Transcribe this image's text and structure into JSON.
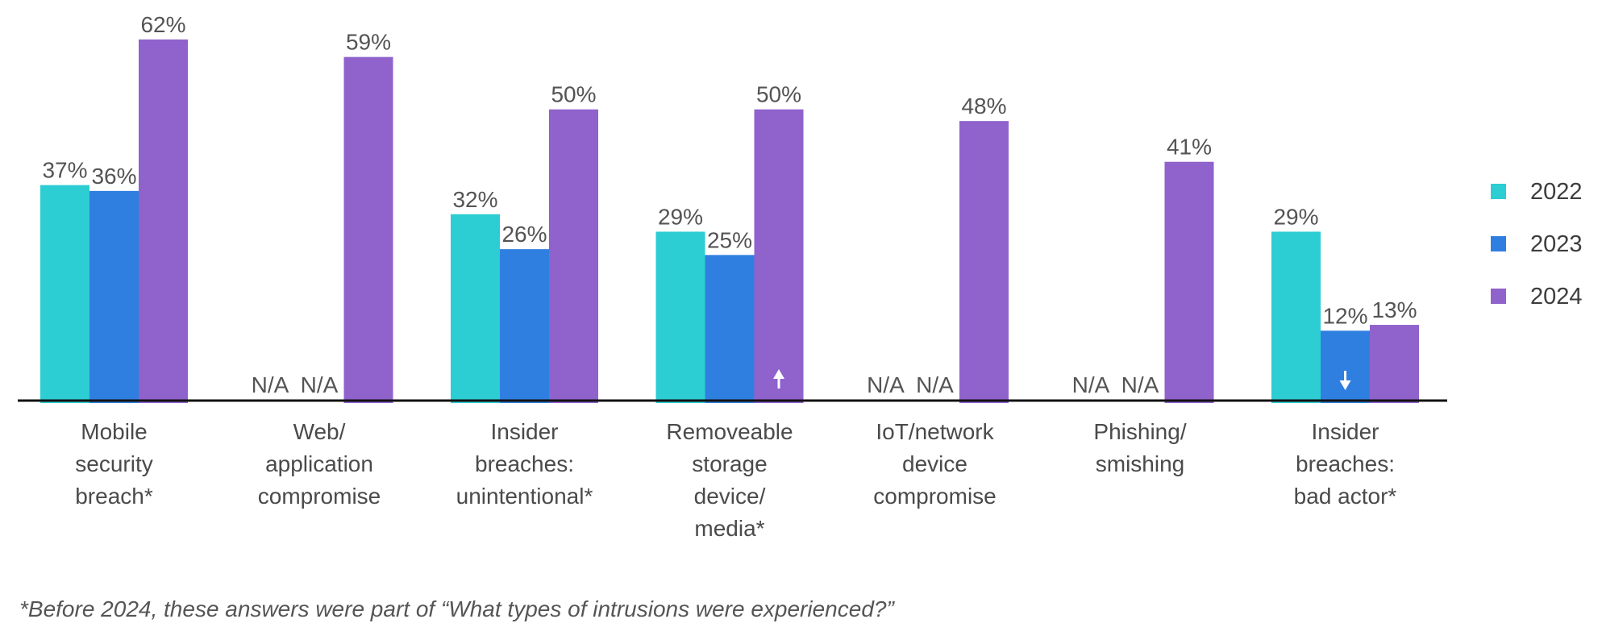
{
  "chart_data": {
    "type": "bar",
    "categories": [
      [
        "Mobile",
        "security",
        "breach*"
      ],
      [
        "Web/",
        "application",
        "compromise"
      ],
      [
        "Insider",
        "breaches:",
        "unintentional*"
      ],
      [
        "Removeable",
        "storage",
        "device/",
        "media*"
      ],
      [
        "IoT/network",
        "device",
        "compromise"
      ],
      [
        "Phishing/",
        "smishing"
      ],
      [
        "Insider",
        "breaches:",
        "bad actor*"
      ]
    ],
    "series": [
      {
        "name": "2022",
        "color": "#2ccdd3",
        "values": [
          37,
          null,
          32,
          29,
          null,
          null,
          29
        ],
        "labels": [
          "37%",
          "N/A",
          "32%",
          "29%",
          "N/A",
          "N/A",
          "29%"
        ]
      },
      {
        "name": "2023",
        "color": "#2f7fe0",
        "values": [
          36,
          null,
          26,
          25,
          null,
          null,
          12
        ],
        "labels": [
          "36%",
          "N/A",
          "26%",
          "25%",
          "N/A",
          "N/A",
          "12%"
        ]
      },
      {
        "name": "2024",
        "color": "#9062cc",
        "values": [
          62,
          59,
          50,
          50,
          48,
          41,
          13
        ],
        "labels": [
          "62%",
          "59%",
          "50%",
          "50%",
          "48%",
          "41%",
          "13%"
        ]
      }
    ],
    "arrows": [
      {
        "category_index": 3,
        "series": "2024",
        "direction": "up"
      },
      {
        "category_index": 6,
        "series": "2023",
        "direction": "down"
      }
    ],
    "ylim": [
      0,
      62
    ],
    "legend_position": "right",
    "grid": false
  },
  "footnote": "*Before 2024, these answers were part of “What types of intrusions were experienced?”"
}
